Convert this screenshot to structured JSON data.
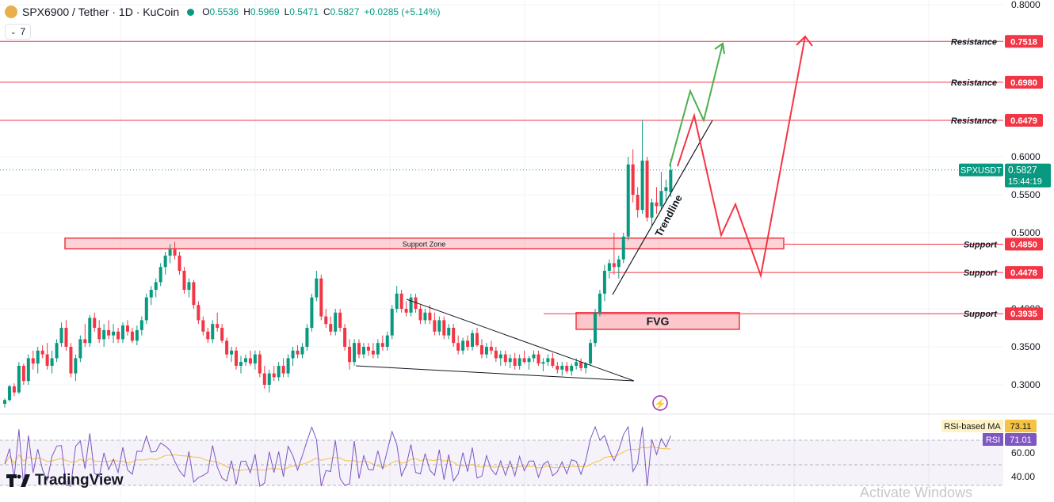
{
  "header": {
    "title": "SPX6900 / Tether · 1D · KuCoin",
    "o_label": "O",
    "o_value": "0.5536",
    "h_label": "H",
    "h_value": "0.5969",
    "l_label": "L",
    "l_value": "0.5471",
    "c_label": "C",
    "c_value": "0.5827",
    "change": "+0.0285 (+5.14%)"
  },
  "indicator_toggle": {
    "count": "7"
  },
  "branding": {
    "logo_text": "TradingView"
  },
  "watermark": "Activate Windows",
  "colors": {
    "up": "#089981",
    "down": "#f23645",
    "level": "#f23645",
    "rsi": "#7e57c2",
    "rsi_ma": "#f5c242"
  },
  "chart_data": [
    {
      "type": "candlestick",
      "symbol": "SPXUSDT",
      "y_axis_ticks": [
        "0.8000",
        "0.6000",
        "0.5500",
        "0.5000",
        "0.4000",
        "0.3500",
        "0.3000"
      ],
      "ylim": [
        0.2825,
        0.8
      ],
      "last_price": {
        "label": "SPXUSDT",
        "value": "0.5827",
        "countdown": "15:44:19"
      },
      "levels": [
        {
          "label": "Resistance",
          "value": "0.7518"
        },
        {
          "label": "Resistance",
          "value": "0.6980"
        },
        {
          "label": "Resistance",
          "value": "0.6479"
        },
        {
          "label": "Support",
          "value": "0.4850"
        },
        {
          "label": "Support",
          "value": "0.4478"
        },
        {
          "label": "Support",
          "value": "0.3935"
        }
      ],
      "zones": [
        {
          "label": "Support Zone",
          "from": 0.479,
          "to": 0.493
        },
        {
          "label": "FVG",
          "from": 0.373,
          "to": 0.395
        }
      ],
      "annotations": [
        {
          "label": "Trendline"
        }
      ],
      "candles_ohlc": [
        [
          0.275,
          0.282,
          0.27,
          0.28
        ],
        [
          0.28,
          0.3,
          0.278,
          0.298
        ],
        [
          0.298,
          0.302,
          0.285,
          0.29
        ],
        [
          0.29,
          0.33,
          0.288,
          0.325
        ],
        [
          0.325,
          0.328,
          0.3,
          0.305
        ],
        [
          0.305,
          0.34,
          0.3,
          0.335
        ],
        [
          0.335,
          0.345,
          0.32,
          0.328
        ],
        [
          0.328,
          0.35,
          0.315,
          0.345
        ],
        [
          0.345,
          0.352,
          0.335,
          0.34
        ],
        [
          0.34,
          0.355,
          0.32,
          0.325
        ],
        [
          0.325,
          0.345,
          0.315,
          0.335
        ],
        [
          0.335,
          0.36,
          0.33,
          0.355
        ],
        [
          0.355,
          0.382,
          0.35,
          0.375
        ],
        [
          0.375,
          0.385,
          0.345,
          0.35
        ],
        [
          0.35,
          0.355,
          0.31,
          0.315
        ],
        [
          0.315,
          0.34,
          0.305,
          0.335
        ],
        [
          0.335,
          0.365,
          0.33,
          0.36
        ],
        [
          0.36,
          0.38,
          0.35,
          0.355
        ],
        [
          0.355,
          0.392,
          0.35,
          0.388
        ],
        [
          0.388,
          0.395,
          0.37,
          0.375
        ],
        [
          0.375,
          0.385,
          0.355,
          0.36
        ],
        [
          0.36,
          0.38,
          0.35,
          0.372
        ],
        [
          0.372,
          0.385,
          0.36,
          0.365
        ],
        [
          0.365,
          0.38,
          0.355,
          0.37
        ],
        [
          0.37,
          0.375,
          0.355,
          0.36
        ],
        [
          0.36,
          0.382,
          0.355,
          0.378
        ],
        [
          0.378,
          0.385,
          0.365,
          0.37
        ],
        [
          0.37,
          0.375,
          0.355,
          0.358
        ],
        [
          0.358,
          0.378,
          0.352,
          0.372
        ],
        [
          0.372,
          0.39,
          0.365,
          0.385
        ],
        [
          0.385,
          0.42,
          0.38,
          0.415
        ],
        [
          0.415,
          0.43,
          0.405,
          0.425
        ],
        [
          0.425,
          0.44,
          0.415,
          0.435
        ],
        [
          0.435,
          0.46,
          0.43,
          0.455
        ],
        [
          0.455,
          0.475,
          0.445,
          0.47
        ],
        [
          0.47,
          0.485,
          0.46,
          0.478
        ],
        [
          0.478,
          0.488,
          0.465,
          0.47
        ],
        [
          0.47,
          0.475,
          0.445,
          0.45
        ],
        [
          0.45,
          0.455,
          0.42,
          0.425
        ],
        [
          0.425,
          0.44,
          0.415,
          0.435
        ],
        [
          0.435,
          0.438,
          0.4,
          0.405
        ],
        [
          0.405,
          0.41,
          0.38,
          0.385
        ],
        [
          0.385,
          0.39,
          0.365,
          0.37
        ],
        [
          0.37,
          0.375,
          0.355,
          0.36
        ],
        [
          0.36,
          0.385,
          0.355,
          0.38
        ],
        [
          0.38,
          0.395,
          0.37,
          0.375
        ],
        [
          0.375,
          0.38,
          0.355,
          0.358
        ],
        [
          0.358,
          0.362,
          0.335,
          0.34
        ],
        [
          0.34,
          0.35,
          0.33,
          0.345
        ],
        [
          0.345,
          0.35,
          0.32,
          0.325
        ],
        [
          0.325,
          0.338,
          0.315,
          0.33
        ],
        [
          0.33,
          0.34,
          0.325,
          0.335
        ],
        [
          0.335,
          0.345,
          0.325,
          0.328
        ],
        [
          0.328,
          0.345,
          0.32,
          0.34
        ],
        [
          0.34,
          0.345,
          0.31,
          0.315
        ],
        [
          0.315,
          0.325,
          0.295,
          0.3
        ],
        [
          0.3,
          0.32,
          0.29,
          0.315
        ],
        [
          0.315,
          0.325,
          0.305,
          0.31
        ],
        [
          0.31,
          0.33,
          0.305,
          0.325
        ],
        [
          0.325,
          0.335,
          0.31,
          0.315
        ],
        [
          0.315,
          0.34,
          0.31,
          0.335
        ],
        [
          0.335,
          0.35,
          0.325,
          0.345
        ],
        [
          0.345,
          0.352,
          0.335,
          0.34
        ],
        [
          0.34,
          0.355,
          0.335,
          0.35
        ],
        [
          0.35,
          0.38,
          0.345,
          0.375
        ],
        [
          0.375,
          0.42,
          0.37,
          0.415
        ],
        [
          0.415,
          0.45,
          0.41,
          0.44
        ],
        [
          0.44,
          0.445,
          0.385,
          0.39
        ],
        [
          0.39,
          0.4,
          0.375,
          0.38
        ],
        [
          0.38,
          0.39,
          0.365,
          0.37
        ],
        [
          0.37,
          0.4,
          0.365,
          0.395
        ],
        [
          0.395,
          0.4,
          0.37,
          0.375
        ],
        [
          0.375,
          0.38,
          0.345,
          0.35
        ],
        [
          0.35,
          0.36,
          0.32,
          0.33
        ],
        [
          0.33,
          0.36,
          0.325,
          0.355
        ],
        [
          0.355,
          0.36,
          0.335,
          0.34
        ],
        [
          0.34,
          0.355,
          0.335,
          0.35
        ],
        [
          0.35,
          0.355,
          0.338,
          0.345
        ],
        [
          0.345,
          0.355,
          0.335,
          0.34
        ],
        [
          0.34,
          0.36,
          0.335,
          0.355
        ],
        [
          0.355,
          0.365,
          0.345,
          0.35
        ],
        [
          0.35,
          0.37,
          0.345,
          0.365
        ],
        [
          0.365,
          0.405,
          0.36,
          0.4
        ],
        [
          0.4,
          0.43,
          0.395,
          0.42
        ],
        [
          0.42,
          0.425,
          0.395,
          0.4
        ],
        [
          0.4,
          0.41,
          0.39,
          0.395
        ],
        [
          0.395,
          0.42,
          0.39,
          0.415
        ],
        [
          0.415,
          0.42,
          0.395,
          0.4
        ],
        [
          0.4,
          0.405,
          0.38,
          0.385
        ],
        [
          0.385,
          0.4,
          0.38,
          0.395
        ],
        [
          0.395,
          0.405,
          0.38,
          0.385
        ],
        [
          0.385,
          0.395,
          0.365,
          0.37
        ],
        [
          0.37,
          0.39,
          0.365,
          0.385
        ],
        [
          0.385,
          0.39,
          0.36,
          0.365
        ],
        [
          0.365,
          0.38,
          0.36,
          0.375
        ],
        [
          0.375,
          0.38,
          0.35,
          0.355
        ],
        [
          0.355,
          0.365,
          0.34,
          0.345
        ],
        [
          0.345,
          0.362,
          0.34,
          0.358
        ],
        [
          0.358,
          0.365,
          0.345,
          0.35
        ],
        [
          0.35,
          0.372,
          0.345,
          0.368
        ],
        [
          0.368,
          0.375,
          0.35,
          0.352
        ],
        [
          0.352,
          0.36,
          0.335,
          0.34
        ],
        [
          0.34,
          0.355,
          0.335,
          0.35
        ],
        [
          0.35,
          0.358,
          0.34,
          0.345
        ],
        [
          0.345,
          0.35,
          0.33,
          0.335
        ],
        [
          0.335,
          0.345,
          0.325,
          0.34
        ],
        [
          0.34,
          0.345,
          0.325,
          0.33
        ],
        [
          0.33,
          0.34,
          0.322,
          0.335
        ],
        [
          0.335,
          0.342,
          0.32,
          0.325
        ],
        [
          0.325,
          0.34,
          0.32,
          0.335
        ],
        [
          0.335,
          0.345,
          0.328,
          0.33
        ],
        [
          0.33,
          0.338,
          0.32,
          0.335
        ],
        [
          0.335,
          0.345,
          0.33,
          0.34
        ],
        [
          0.34,
          0.345,
          0.325,
          0.328
        ],
        [
          0.328,
          0.335,
          0.318,
          0.33
        ],
        [
          0.33,
          0.34,
          0.325,
          0.335
        ],
        [
          0.335,
          0.342,
          0.322,
          0.325
        ],
        [
          0.325,
          0.33,
          0.315,
          0.32
        ],
        [
          0.32,
          0.33,
          0.312,
          0.325
        ],
        [
          0.325,
          0.33,
          0.315,
          0.318
        ],
        [
          0.318,
          0.328,
          0.312,
          0.325
        ],
        [
          0.325,
          0.335,
          0.32,
          0.33
        ],
        [
          0.33,
          0.335,
          0.318,
          0.322
        ],
        [
          0.322,
          0.33,
          0.315,
          0.328
        ],
        [
          0.328,
          0.36,
          0.325,
          0.355
        ],
        [
          0.355,
          0.4,
          0.35,
          0.395
        ],
        [
          0.395,
          0.425,
          0.39,
          0.42
        ],
        [
          0.42,
          0.458,
          0.41,
          0.45
        ],
        [
          0.45,
          0.465,
          0.44,
          0.46
        ],
        [
          0.46,
          0.5,
          0.445,
          0.455
        ],
        [
          0.455,
          0.47,
          0.44,
          0.465
        ],
        [
          0.465,
          0.5,
          0.46,
          0.495
        ],
        [
          0.495,
          0.6,
          0.49,
          0.59
        ],
        [
          0.59,
          0.61,
          0.54,
          0.55
        ],
        [
          0.55,
          0.56,
          0.52,
          0.53
        ],
        [
          0.53,
          0.648,
          0.525,
          0.595
        ],
        [
          0.595,
          0.6,
          0.515,
          0.52
        ],
        [
          0.52,
          0.545,
          0.51,
          0.54
        ],
        [
          0.54,
          0.56,
          0.525,
          0.535
        ],
        [
          0.535,
          0.58,
          0.53,
          0.555
        ],
        [
          0.555,
          0.57,
          0.54,
          0.56
        ],
        [
          0.5536,
          0.5969,
          0.5471,
          0.5827
        ]
      ]
    },
    {
      "type": "line",
      "panel": "RSI",
      "y_axis_ticks": [
        "60.00",
        "40.00"
      ],
      "series": [
        {
          "name": "RSI-based MA",
          "last": "73.11"
        },
        {
          "name": "RSI",
          "last": "71.01"
        }
      ]
    }
  ]
}
